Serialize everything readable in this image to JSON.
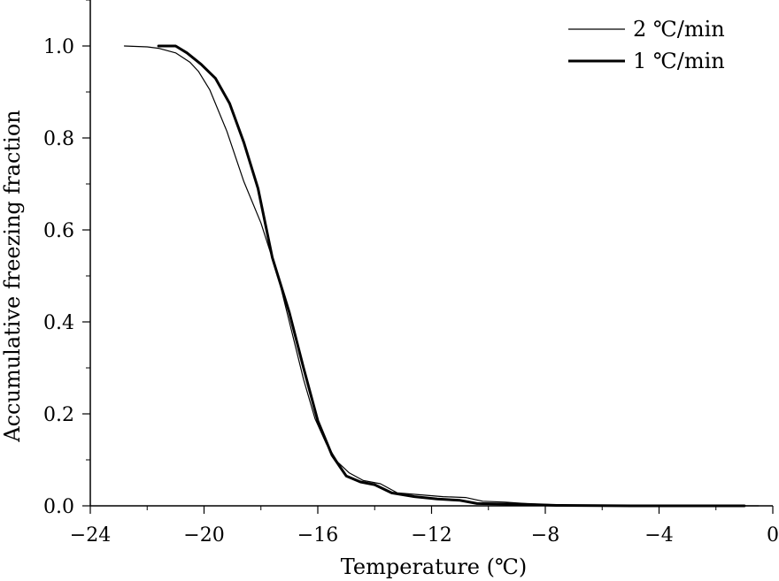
{
  "chart_data": {
    "type": "line",
    "title": "",
    "xlabel": "Temperature (℃)",
    "ylabel": "Accumulative freezing fraction",
    "xlim": [
      -24,
      0
    ],
    "ylim": [
      0,
      1.1
    ],
    "x_ticks": [
      -24,
      -20,
      -16,
      -12,
      -8,
      -4,
      0
    ],
    "x_tick_labels": [
      "−24",
      "−20",
      "−16",
      "−12",
      "−8",
      "−4",
      "0"
    ],
    "y_ticks": [
      0,
      0.2,
      0.4,
      0.6,
      0.8,
      1.0
    ],
    "y_tick_labels": [
      "0.0",
      "0.2",
      "0.4",
      "0.6",
      "0.8",
      "1.0"
    ],
    "grid": false,
    "legend_position": "top-right",
    "series": [
      {
        "name": "2 ℃/min",
        "line": "thin",
        "color": "#000000",
        "points": [
          [
            -22.8,
            1.0
          ],
          [
            -22.0,
            0.998
          ],
          [
            -21.6,
            0.995
          ],
          [
            -21.0,
            0.985
          ],
          [
            -20.5,
            0.965
          ],
          [
            -20.2,
            0.945
          ],
          [
            -19.8,
            0.905
          ],
          [
            -19.2,
            0.815
          ],
          [
            -18.6,
            0.705
          ],
          [
            -18.0,
            0.615
          ],
          [
            -17.4,
            0.5
          ],
          [
            -16.9,
            0.375
          ],
          [
            -16.5,
            0.275
          ],
          [
            -16.1,
            0.19
          ],
          [
            -15.7,
            0.135
          ],
          [
            -15.3,
            0.095
          ],
          [
            -14.9,
            0.072
          ],
          [
            -14.4,
            0.055
          ],
          [
            -13.8,
            0.048
          ],
          [
            -13.2,
            0.028
          ],
          [
            -12.4,
            0.024
          ],
          [
            -11.6,
            0.02
          ],
          [
            -10.8,
            0.018
          ],
          [
            -10.2,
            0.01
          ],
          [
            -9.4,
            0.008
          ],
          [
            -8.5,
            0.004
          ],
          [
            -7.5,
            0.002
          ],
          [
            -6.0,
            0.001
          ],
          [
            -3.0,
            0.0
          ],
          [
            -0.5,
            0.0
          ]
        ]
      },
      {
        "name": "1 ℃/min",
        "line": "thick",
        "color": "#000000",
        "points": [
          [
            -21.6,
            1.0
          ],
          [
            -21.0,
            1.0
          ],
          [
            -20.6,
            0.985
          ],
          [
            -20.1,
            0.96
          ],
          [
            -19.6,
            0.93
          ],
          [
            -19.1,
            0.875
          ],
          [
            -18.6,
            0.79
          ],
          [
            -18.1,
            0.69
          ],
          [
            -17.6,
            0.54
          ],
          [
            -17.0,
            0.42
          ],
          [
            -16.5,
            0.3
          ],
          [
            -16.0,
            0.185
          ],
          [
            -15.5,
            0.11
          ],
          [
            -15.0,
            0.065
          ],
          [
            -14.5,
            0.052
          ],
          [
            -14.0,
            0.046
          ],
          [
            -13.4,
            0.028
          ],
          [
            -12.6,
            0.02
          ],
          [
            -11.8,
            0.015
          ],
          [
            -11.0,
            0.012
          ],
          [
            -10.4,
            0.005
          ],
          [
            -9.6,
            0.004
          ],
          [
            -8.6,
            0.003
          ],
          [
            -7.6,
            0.001
          ],
          [
            -5.0,
            0.0
          ],
          [
            -1.0,
            0.0
          ]
        ]
      }
    ]
  }
}
